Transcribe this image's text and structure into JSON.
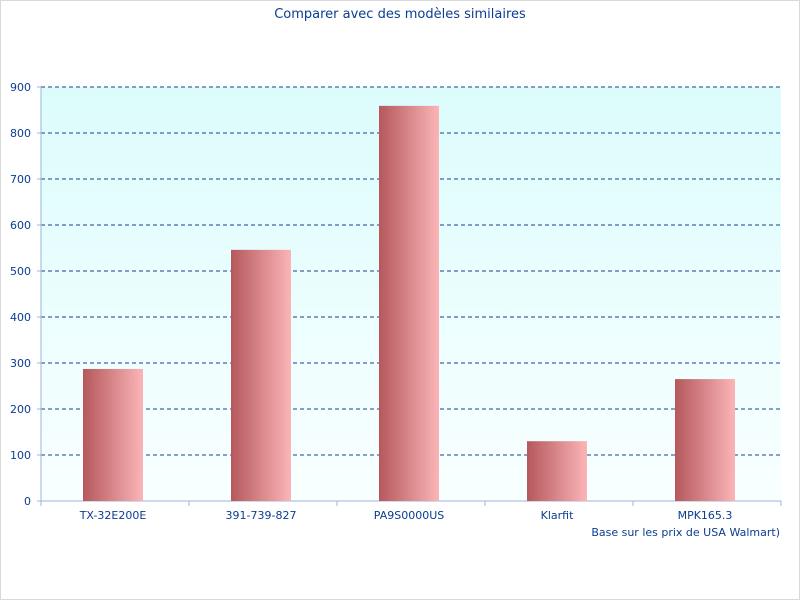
{
  "chart_data": {
    "type": "bar",
    "title": "Comparer avec des modèles similaires",
    "categories": [
      "TX-32E200E",
      "391-739-827",
      "PA9S0000US",
      "Klarfit",
      "MPK165.3"
    ],
    "values": [
      287,
      546,
      859,
      130,
      265
    ],
    "ylim": [
      0,
      900
    ],
    "yticks": [
      0,
      100,
      200,
      300,
      400,
      500,
      600,
      700,
      800,
      900
    ],
    "xlabel": "Base sur les prix de USA Walmart)",
    "ylabel": "",
    "grid": true,
    "legend": "none"
  },
  "colors": {
    "text": "#0b3d91",
    "grid": "#1a3f8c",
    "bar_dark": "#b5585c",
    "bar_light": "#fbb5b7",
    "plot_bg_top": "#dcfcfc",
    "plot_bg_bottom": "#f9ffff",
    "axis": "#9bb6d8"
  }
}
